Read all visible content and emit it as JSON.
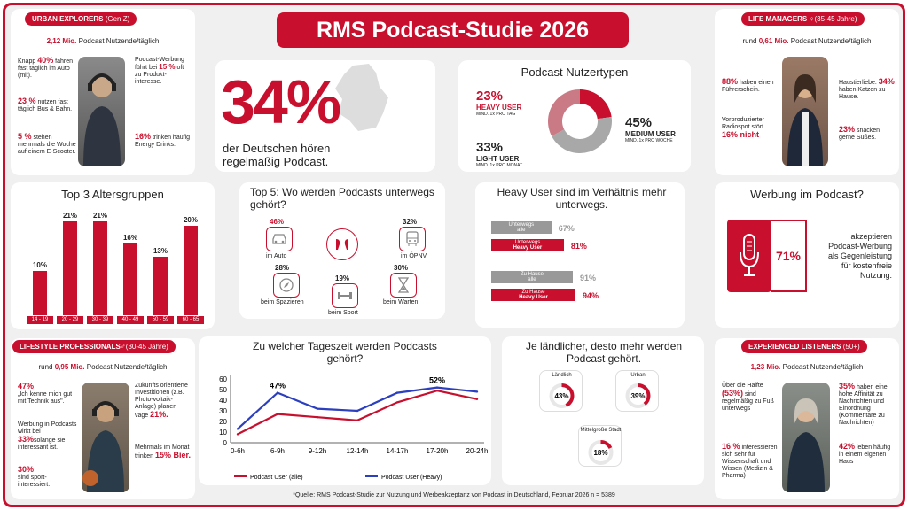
{
  "title": "RMS Podcast-Studie 2026",
  "hero": {
    "percent": "34%",
    "text_line1": "der Deutschen hören",
    "text_line2": "regelmäßig Podcast."
  },
  "urban": {
    "label": "URBAN EXPLORERS",
    "label_sub": "(Gen Z)",
    "users_value": "2,12 Mio.",
    "users_text": "Podcast Nutzende/täglich",
    "f1_pre": "Knapp",
    "f1_value": "40%",
    "f1_text": "fahren fast täglich im Auto (mit).",
    "f2_value": "23 %",
    "f2_text": "nutzen fast täglich Bus & Bahn.",
    "f3_value": "5 %",
    "f3_text": "stehen mehrmals die Woche auf einem E-Scooter.",
    "f4_text": "Podcast-Werbung führt bei",
    "f4_value": "15 %",
    "f4_text2": "oft zu Produkt-interesse.",
    "f5_value": "16%",
    "f5_text": "trinken häufig Energy Drinks."
  },
  "life": {
    "label": "LIFE MANAGERS",
    "label_sub": "(35-45 Jahre)",
    "users_pre": "rund",
    "users_value": "0,61 Mio.",
    "users_text": "Podcast Nutzende/täglich",
    "f1_value": "88%",
    "f1_text": "haben einen Führerschein.",
    "f2_text": "Vorproduzierter Radiospot stört",
    "f2_value": "16% nicht",
    "f3_text": "Haustierliebe:",
    "f3_value": "34%",
    "f3_text2": "haben Katzen zu Hause.",
    "f4_value": "23%",
    "f4_text": "snacken gerne Süßes."
  },
  "usertypes": {
    "title": "Podcast Nutzertypen",
    "heavy": {
      "value": "23%",
      "label": "HEAVY USER",
      "sub": "MIND. 1x PRO TAG",
      "share": 23
    },
    "medium": {
      "value": "45%",
      "label": "MEDIUM USER",
      "sub": "MIND. 1x PRO WOCHE",
      "share": 45
    },
    "light": {
      "value": "33%",
      "label": "LIGHT USER",
      "sub": "MIND. 1x PRO MONAT",
      "share": 33
    },
    "colors": {
      "heavy": "#c8102e",
      "medium": "#a8a8a8",
      "light": "#c97a85"
    }
  },
  "top5": {
    "title": "Top 5: Wo werden Podcasts unterwegs gehört?",
    "items": [
      {
        "value": "46%",
        "label": "im Auto",
        "icon": "car-icon"
      },
      {
        "value": "32%",
        "label": "im ÖPNV",
        "icon": "bus-icon"
      },
      {
        "value": "28%",
        "label": "beim Spazieren",
        "icon": "compass-icon"
      },
      {
        "value": "19%",
        "label": "beim Sport",
        "icon": "dumbbell-icon"
      },
      {
        "value": "30%",
        "label": "beim Warten",
        "icon": "hourglass-icon"
      }
    ]
  },
  "heavy_compare": {
    "title": "Heavy User sind im Verhältnis mehr unterwegs.",
    "rows": [
      {
        "label": "Unterwegs",
        "sub": "alle",
        "value": 67,
        "display": "67%",
        "group": "all"
      },
      {
        "label": "Unterwegs",
        "sub": "Heavy User",
        "value": 81,
        "display": "81%",
        "group": "heavy"
      },
      {
        "label": "Zu Hause",
        "sub": "alle",
        "value": 91,
        "display": "91%",
        "group": "all"
      },
      {
        "label": "Zu Hause",
        "sub": "Heavy User",
        "value": 94,
        "display": "94%",
        "group": "heavy"
      }
    ]
  },
  "werbung": {
    "title": "Werbung im Podcast?",
    "value": "71%",
    "text": "akzeptieren Podcast-Werbung als Gegenleistung für kostenfreie Nutzung."
  },
  "lifestyle": {
    "label": "LIFESTYLE PROFESSIONALS",
    "label_sub": "(30-45 Jahre)",
    "users_pre": "rund",
    "users_value": "0,95 Mio.",
    "users_text": "Podcast Nutzende/täglich",
    "f1_value": "47%",
    "f1_text": "„Ich kenne mich gut mit Technik aus\".",
    "f2_text": "Werbung in Podcasts wirkt bei",
    "f2_value": "33%",
    "f2_text2": "solange sie interessant ist.",
    "f3_value": "30%",
    "f3_text": "sind sport-interessiert.",
    "f4_text": "Zukunfts orientierte Investitionen (z.B. Photo-voltaik-Anlage) planen vage",
    "f4_value": "21%.",
    "f5_text": "Mehrmals im Monat trinken",
    "f5_value": "15% Bier."
  },
  "experienced": {
    "label": "EXPERIENCED LISTENERS",
    "label_sub": "(50+)",
    "users_value": "1,23 Mio.",
    "users_text": "Podcast Nutzende/täglich",
    "f1_text": "Über die Hälfte",
    "f1_value": "(53%)",
    "f1_text2": "sind regelmäßig zu Fuß unterwegs",
    "f2_value": "16 %",
    "f2_text": "interessieren sich sehr für Wissenschaft und Wissen (Medizin & Pharma)",
    "f3_value": "35%",
    "f3_text": "haben eine hohe Affinität zu Nachrichten und Einordnung (Kommentare zu Nachrichten)",
    "f4_value": "42%",
    "f4_text": "leben häufig in einem eigenen Haus"
  },
  "rural": {
    "title": "Je ländlicher, desto mehr werden Podcast gehört.",
    "items": [
      {
        "label": "Ländlich",
        "value": 43,
        "display": "43%"
      },
      {
        "label": "Urban",
        "value": 39,
        "display": "39%"
      },
      {
        "label": "Mittelgroße Stadt",
        "value": 18,
        "display": "18%"
      }
    ]
  },
  "footnote": "*Quelle: RMS Podcast-Studie zur Nutzung und Werbeakzeptanz von Podcast in Deutschland, Februar 2026 n = 5389",
  "chart_data": [
    {
      "type": "bar",
      "title": "Top 3 Altersgruppen",
      "categories": [
        "14 - 19",
        "20 - 29",
        "30 - 39",
        "40 - 49",
        "50 - 59",
        "60 - 65"
      ],
      "values": [
        10,
        21,
        21,
        16,
        13,
        20
      ],
      "labels": [
        "10%",
        "21%",
        "21%",
        "16%",
        "13%",
        "20%"
      ],
      "color": "#c8102e"
    },
    {
      "type": "line",
      "title": "Zu welcher Tageszeit werden Podcasts gehört?",
      "categories": [
        "0-6h",
        "6-9h",
        "9-12h",
        "12-14h",
        "14-17h",
        "17-20h",
        "20-24h"
      ],
      "yticks": [
        0,
        10,
        20,
        30,
        40,
        50,
        60
      ],
      "ylim": [
        0,
        60
      ],
      "series": [
        {
          "name": "Podcast User (alle)",
          "color": "#c8102e",
          "values": [
            8,
            27,
            24,
            21,
            38,
            49,
            41
          ]
        },
        {
          "name": "Podcast User (Heavy)",
          "color": "#2b3fbf",
          "values": [
            13,
            47,
            32,
            30,
            47,
            52,
            48
          ]
        }
      ],
      "annotations": [
        {
          "series": 1,
          "index": 1,
          "text": "47%"
        },
        {
          "series": 1,
          "index": 5,
          "text": "52%"
        }
      ],
      "legend": "bottom"
    }
  ]
}
